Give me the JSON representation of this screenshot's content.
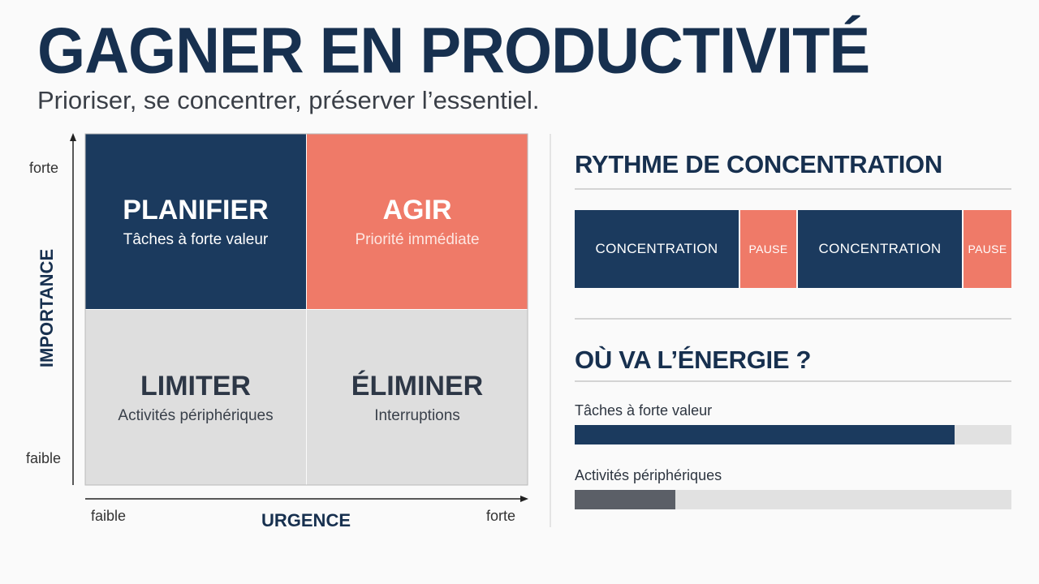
{
  "header": {
    "title": "GAGNER EN PRODUCTIVITÉ",
    "subtitle": "Prioriser, se concentrer, préserver l’essentiel."
  },
  "matrix": {
    "y_axis": {
      "label": "IMPORTANCE",
      "high": "forte",
      "low": "faible"
    },
    "x_axis": {
      "label": "URGENCE",
      "low": "faible",
      "high": "forte"
    },
    "quadrants": [
      {
        "title": "PLANIFIER",
        "subtitle": "Tâches à forte valeur"
      },
      {
        "title": "AGIR",
        "subtitle": "Priorité immédiate"
      },
      {
        "title": "LIMITER",
        "subtitle": "Activités périphériques"
      },
      {
        "title": "ÉLIMINER",
        "subtitle": "Interruptions"
      }
    ]
  },
  "rhythm": {
    "title": "RYTHME DE CONCENTRATION",
    "segments": [
      "CONCENTRATION",
      "PAUSE",
      "CONCENTRATION",
      "PAUSE"
    ]
  },
  "energy": {
    "title": "OÙ VA L’ÉNERGIE ?",
    "xlim": [
      0,
      100
    ],
    "items": [
      {
        "label": "Tâches à forte valeur",
        "value": 87
      },
      {
        "label": "Activités périphériques",
        "value": 23
      }
    ]
  }
}
